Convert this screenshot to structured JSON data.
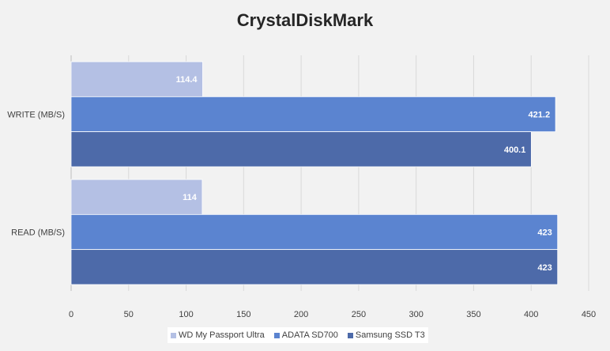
{
  "chart_data": {
    "type": "bar",
    "orientation": "horizontal",
    "title": "CrystalDiskMark",
    "categories": [
      "WRITE (MB/S)",
      "READ (MB/S)"
    ],
    "series": [
      {
        "name": "WD My Passport Ultra",
        "color": "#b4c0e4",
        "values": [
          114.4,
          114
        ],
        "labels": [
          "114.4",
          "114"
        ]
      },
      {
        "name": "ADATA SD700",
        "color": "#5b84d0",
        "values": [
          421.2,
          423
        ],
        "labels": [
          "421.2",
          "423"
        ]
      },
      {
        "name": "Samsung SSD T3",
        "color": "#4d6aa9",
        "values": [
          400.1,
          423
        ],
        "labels": [
          "400.1",
          "423"
        ]
      }
    ],
    "xlim": [
      0,
      450
    ],
    "xticks": [
      "0",
      "50",
      "100",
      "150",
      "200",
      "250",
      "300",
      "350",
      "400",
      "450"
    ],
    "grid": true,
    "legend_position": "bottom"
  }
}
